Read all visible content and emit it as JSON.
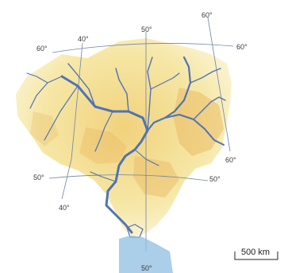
{
  "grid_labels": {
    "top_60": "60°",
    "upper_40": "40°",
    "top_50": "50°",
    "left_60": "60°",
    "right_60": "60°",
    "east_60": "60°",
    "left_50": "50°",
    "right_50": "50°",
    "lower_40": "40°",
    "bottom_50": "50°"
  },
  "scale_bar": {
    "label": "500 km"
  },
  "colors": {
    "land_light": "#f8efb8",
    "land_mid": "#f2d886",
    "highland": "#e9b860",
    "river": "#4f73b5",
    "grid": "#6f83a8"
  }
}
